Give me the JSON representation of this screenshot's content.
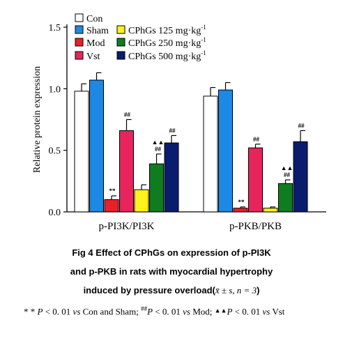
{
  "chart_data": {
    "type": "bar",
    "title": "",
    "xlabel": "",
    "ylabel": "Relative protein expression",
    "ylim": [
      0,
      1.5
    ],
    "yticks": [
      "0.0",
      "0.5",
      "1.0",
      "1.5"
    ],
    "grid": false,
    "legend_position": "top-left",
    "categories": [
      "p-PI3K/PI3K",
      "p-PKB/PKB"
    ],
    "series": [
      {
        "name": "Con",
        "values": [
          0.98,
          0.94
        ],
        "errors": [
          0.06,
          0.07
        ],
        "color": "#ffffff",
        "marks": [
          "",
          ""
        ]
      },
      {
        "name": "Sham",
        "values": [
          1.07,
          0.99
        ],
        "errors": [
          0.06,
          0.06
        ],
        "color": "#1e88e5",
        "marks": [
          "",
          ""
        ]
      },
      {
        "name": "Mod",
        "values": [
          0.1,
          0.03
        ],
        "errors": [
          0.03,
          0.01
        ],
        "color": "#e8202a",
        "marks": [
          "**",
          "**"
        ]
      },
      {
        "name": "Vst",
        "values": [
          0.66,
          0.52
        ],
        "errors": [
          0.09,
          0.03
        ],
        "color": "#e8245d",
        "marks": [
          "##",
          "##"
        ]
      },
      {
        "name": "CPhGs 125 mg·kg",
        "sup": "-1",
        "values": [
          0.18,
          0.03
        ],
        "errors": [
          0.04,
          0.01
        ],
        "color": "#fff21c",
        "marks": [
          "",
          ""
        ]
      },
      {
        "name": "CPhGs 250 mg·kg",
        "sup": "-1",
        "values": [
          0.39,
          0.23
        ],
        "errors": [
          0.08,
          0.03
        ],
        "color": "#0f7d1f",
        "marks": [
          "▲▲##",
          "▲▲##"
        ]
      },
      {
        "name": "CPhGs 500 mg·kg",
        "sup": "-1",
        "values": [
          0.56,
          0.57
        ],
        "errors": [
          0.06,
          0.09
        ],
        "color": "#0a1c6e",
        "marks": [
          "##",
          "##"
        ]
      }
    ]
  },
  "caption": {
    "line1": "Fig 4   Effect of CPhGs on expression of p-PI3K",
    "line2": "and p-PKB in rats with myocardial hypertrophy",
    "line3_text": "induced by pressure overload(",
    "line3_math": "x̄ ± s, n = 3",
    "line3_end": ")"
  },
  "footnote": {
    "p1_marks": "* *",
    "p1_p": "P",
    "p1_text": " < 0. 01 ",
    "p1_vs": "vs",
    "p1_groups": " Con and Sham; ",
    "p2_marks": "##",
    "p2_p": "P",
    "p2_text": " < 0. 01 ",
    "p2_vs": "vs",
    "p2_groups": " Mod; ",
    "p3_marks": "▲▲",
    "p3_p": "P",
    "p3_text": " < 0. 01 ",
    "p3_vs": "vs",
    "p3_groups": " Vst"
  }
}
